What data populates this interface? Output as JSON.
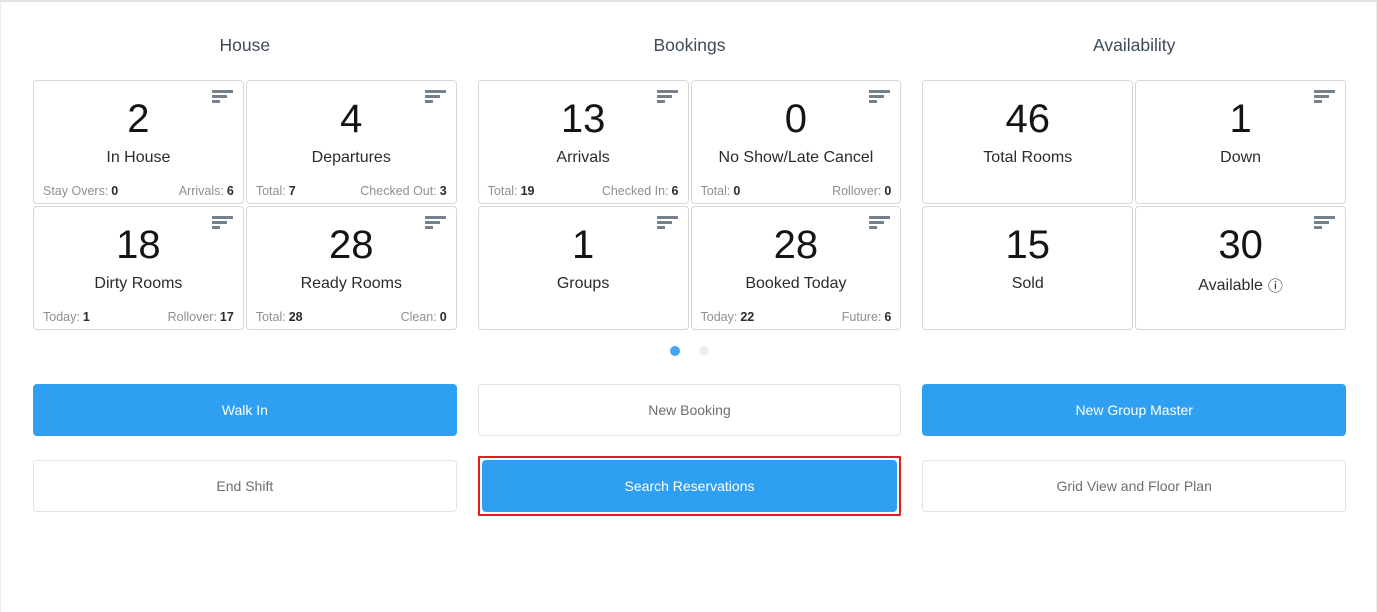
{
  "colors": {
    "accent_blue": "#2f9ff2",
    "active_dot_blue": "#42a5f5",
    "highlight_red": "#e11d1d",
    "title_color": "#3e4a57"
  },
  "icons": {
    "card_menu": "filter-lines-icon",
    "info": "ⓘ"
  },
  "sections": [
    {
      "title": "House",
      "cards": [
        {
          "value": "2",
          "label": "In House",
          "footer": {
            "left_label": "Stay Overs:",
            "left_value": "0",
            "right_label": "Arrivals:",
            "right_value": "6"
          }
        },
        {
          "value": "4",
          "label": "Departures",
          "footer": {
            "left_label": "Total:",
            "left_value": "7",
            "right_label": "Checked Out:",
            "right_value": "3"
          }
        },
        {
          "value": "18",
          "label": "Dirty Rooms",
          "footer": {
            "left_label": "Today:",
            "left_value": "1",
            "right_label": "Rollover:",
            "right_value": "17"
          }
        },
        {
          "value": "28",
          "label": "Ready Rooms",
          "footer": {
            "left_label": "Total:",
            "left_value": "28",
            "right_label": "Clean:",
            "right_value": "0"
          }
        }
      ]
    },
    {
      "title": "Bookings",
      "cards": [
        {
          "value": "13",
          "label": "Arrivals",
          "footer": {
            "left_label": "Total:",
            "left_value": "19",
            "right_label": "Checked In:",
            "right_value": "6"
          }
        },
        {
          "value": "0",
          "label": "No Show/Late Cancel",
          "footer": {
            "left_label": "Total:",
            "left_value": "0",
            "right_label": "Rollover:",
            "right_value": "0"
          }
        },
        {
          "value": "1",
          "label": "Groups"
        },
        {
          "value": "28",
          "label": "Booked Today",
          "footer": {
            "left_label": "Today:",
            "left_value": "22",
            "right_label": "Future:",
            "right_value": "6"
          }
        }
      ],
      "pagination": {
        "dot_count": 2,
        "active_index": 0
      }
    },
    {
      "title": "Availability",
      "cards": [
        {
          "value": "46",
          "label": "Total Rooms"
        },
        {
          "value": "1",
          "label": "Down"
        },
        {
          "value": "15",
          "label": "Sold"
        },
        {
          "value": "30",
          "label": "Available",
          "has_info_icon": true
        }
      ]
    }
  ],
  "buttons": {
    "walk_in": "Walk In",
    "new_booking": "New Booking",
    "new_group_master": "New Group Master",
    "end_shift": "End Shift",
    "search_reservations": "Search Reservations",
    "grid_view_floor_plan": "Grid View and Floor Plan"
  }
}
